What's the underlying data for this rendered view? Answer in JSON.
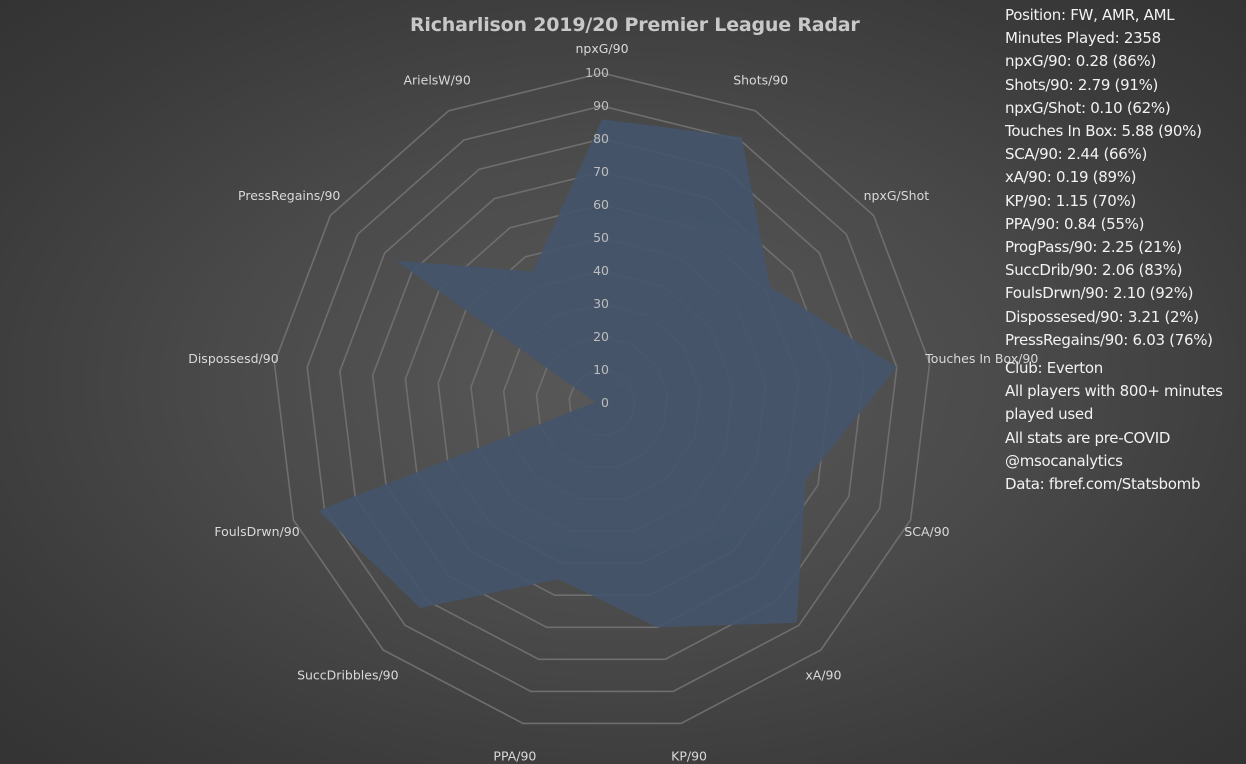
{
  "chart_data": {
    "type": "radar",
    "title": "Richarlison 2019/20 Premier League Radar",
    "categories": [
      "npxG/90",
      "Shots/90",
      "npxG/Shot",
      "Touches In Box/90",
      "SCA/90",
      "xA/90",
      "KP/90",
      "PPA/90",
      "SuccDribbles/90",
      "FoulsDrwn/90",
      "Dispossesd/90",
      "PressRegains/90",
      "ArielsW/90"
    ],
    "values": [
      86,
      91,
      62,
      90,
      66,
      89,
      70,
      55,
      83,
      92,
      2,
      76,
      45
    ],
    "r_ticks": [
      "0",
      "10",
      "20",
      "30",
      "40",
      "50",
      "60",
      "70",
      "80",
      "90",
      "100"
    ],
    "rlim": [
      0,
      100
    ],
    "grid": true,
    "series_color": "#44546a"
  },
  "info": {
    "stats": [
      "Position: FW, AMR, AML",
      "Minutes Played: 2358",
      "npxG/90: 0.28 (86%)",
      "Shots/90: 2.79 (91%)",
      "npxG/Shot: 0.10 (62%)",
      "Touches In Box: 5.88 (90%)",
      "SCA/90: 2.44 (66%)",
      "xA/90: 0.19 (89%)",
      "KP/90: 1.15 (70%)",
      "PPA/90: 0.84 (55%)",
      "ProgPass/90: 2.25 (21%)",
      "SuccDrib/90: 2.06 (83%)",
      "FoulsDrwn/90: 2.10 (92%)",
      "Dispossesed/90: 3.21 (2%)",
      "PressRegains/90: 6.03 (76%)"
    ],
    "footer": [
      "Club: Everton",
      "All players with 800+ minutes played used",
      "All stats are pre-COVID",
      "@msocanalytics",
      "Data: fbref.com/Statsbomb"
    ]
  }
}
